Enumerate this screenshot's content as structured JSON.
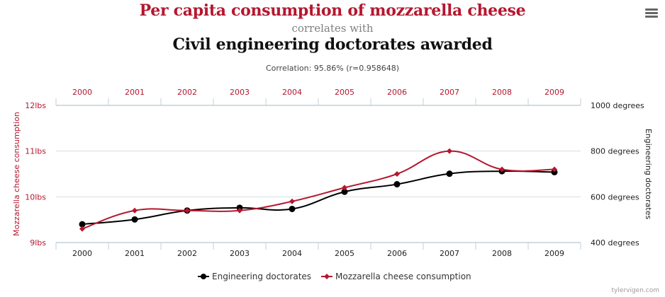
{
  "header": {
    "title_primary": "Per capita consumption of mozzarella cheese",
    "connector": "correlates with",
    "title_secondary": "Civil engineering doctorates awarded",
    "correlation": "Correlation: 95.86% (r=0.958648)"
  },
  "menu": {
    "icon": "hamburger-menu-icon"
  },
  "footer": {
    "credit": "tylervigen.com"
  },
  "colors": {
    "red": "#b5172f",
    "black": "#000000",
    "grid": "#d8dde2",
    "axis": "#c3cfd9"
  },
  "chart_data": {
    "type": "line",
    "categories": [
      "2000",
      "2001",
      "2002",
      "2003",
      "2004",
      "2005",
      "2006",
      "2007",
      "2008",
      "2009"
    ],
    "series": [
      {
        "name": "Engineering doctorates",
        "axis": "right",
        "color": "#000000",
        "marker": "circle",
        "values": [
          480,
          501,
          540,
          552,
          547,
          622,
          655,
          701,
          712,
          708
        ]
      },
      {
        "name": "Mozzarella cheese consumption",
        "axis": "left",
        "color": "#b5172f",
        "marker": "diamond",
        "values": [
          9.3,
          9.7,
          9.7,
          9.7,
          9.9,
          10.2,
          10.5,
          11.0,
          10.6,
          10.6
        ]
      }
    ],
    "left_axis": {
      "label": "Mozzarella cheese consumption",
      "range": [
        9,
        12
      ],
      "ticks": [
        {
          "value": 12,
          "label": "12lbs"
        },
        {
          "value": 11,
          "label": "11lbs"
        },
        {
          "value": 10,
          "label": "10lbs"
        },
        {
          "value": 9,
          "label": "9lbs"
        }
      ]
    },
    "right_axis": {
      "label": "Engineering doctorates",
      "range": [
        400,
        1000
      ],
      "ticks": [
        {
          "value": 1000,
          "label": "1000 degrees"
        },
        {
          "value": 800,
          "label": "800 degrees"
        },
        {
          "value": 600,
          "label": "600 degrees"
        },
        {
          "value": 400,
          "label": "400 degrees"
        }
      ]
    },
    "xlabel_top": "",
    "xlabel_bottom": "",
    "grid": true,
    "legend": {
      "position": "bottom-center",
      "entries": [
        "Engineering doctorates",
        "Mozzarella cheese consumption"
      ]
    }
  }
}
